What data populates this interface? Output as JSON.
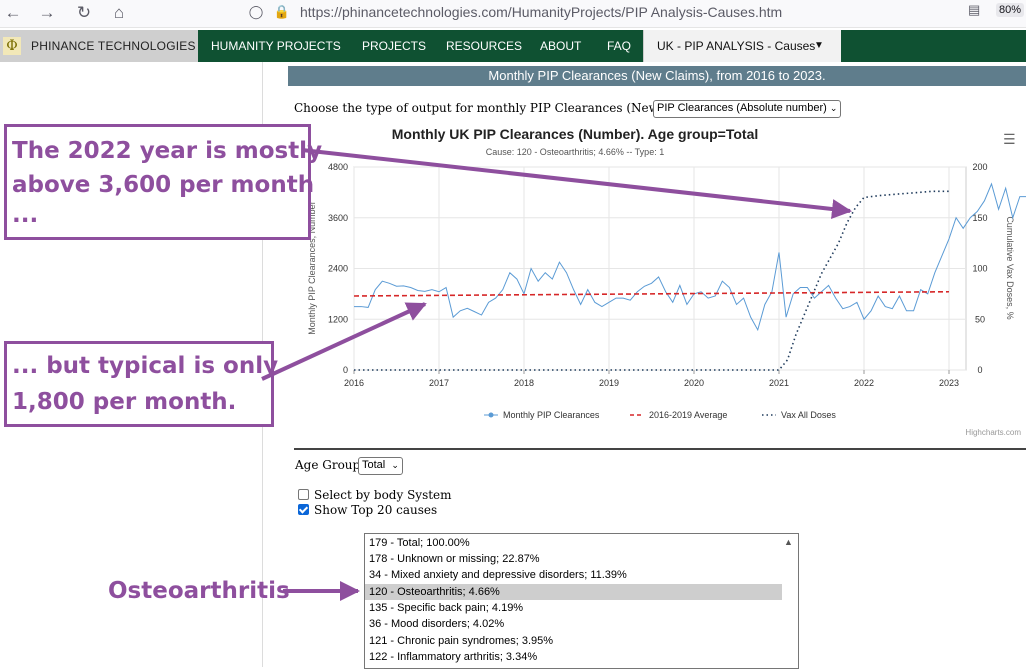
{
  "browser": {
    "url": "https://phinancetechnologies.com/HumanityProjects/PIP Analysis-Causes.htm",
    "zoom": "80%",
    "back_icon": "arrow-left-icon",
    "forward_icon": "arrow-right-icon",
    "reload_icon": "reload-icon",
    "home_icon": "home-icon"
  },
  "nav": {
    "brand": "PHINANCE TECHNOLOGIES",
    "items": [
      "HUMANITY PROJECTS",
      "PROJECTS",
      "RESOURCES",
      "ABOUT",
      "FAQ"
    ],
    "active": "UK - PIP ANALYSIS - Causes",
    "colors": {
      "bar": "#0f5132",
      "active_bg": "#f2f2f2"
    }
  },
  "banner": "Monthly PIP Clearances (New Claims), from 2016 to 2023.",
  "output_label": "Choose the type of output for monthly PIP Clearances (New Claims):",
  "output_select": "PIP Clearances (Absolute number)",
  "chart_data": {
    "type": "line",
    "title": "Monthly UK PIP Clearances (Number). Age group=Total",
    "subtitle": "Cause: 120 - Osteoarthritis; 4.66% -- Type: 1",
    "ylabel": "Monthly PIP Clearances, Number",
    "y2label": "Cumulative Vax Doses, %",
    "ylim": [
      0,
      4800
    ],
    "y2lim": [
      0,
      200
    ],
    "yticks": [
      "0",
      "1200",
      "2400",
      "3600",
      "4800"
    ],
    "y2ticks": [
      "0",
      "50",
      "100",
      "150",
      "200"
    ],
    "xlim": [
      2016,
      2023.2
    ],
    "xticks": [
      "2016",
      "2017",
      "2018",
      "2019",
      "2020",
      "2021",
      "2022",
      "2023"
    ],
    "grid": true,
    "legend_position": "bottom",
    "credits": "Highcharts.com",
    "series": [
      {
        "name": "Monthly PIP Clearances",
        "color": "#5b9bd5",
        "start": 2016,
        "step_months": 1,
        "values": [
          1500,
          1500,
          1480,
          1900,
          2100,
          2050,
          1980,
          1990,
          1950,
          1880,
          1860,
          1900,
          1850,
          1950,
          1250,
          1400,
          1460,
          1380,
          1300,
          1600,
          1700,
          1900,
          2300,
          2150,
          1800,
          2400,
          2100,
          2300,
          2150,
          2550,
          2300,
          1900,
          1550,
          1900,
          1600,
          1500,
          1600,
          1700,
          1700,
          1650,
          1850,
          1980,
          2050,
          2200,
          1850,
          1600,
          2000,
          1550,
          1800,
          1850,
          1700,
          1750,
          2100,
          1950,
          1550,
          1700,
          1250,
          950,
          1550,
          1850,
          2780,
          1250,
          1800,
          1950,
          1950,
          1700,
          1850,
          2000,
          1700,
          1450,
          1500,
          1600,
          1200,
          1400,
          1750,
          1500,
          1450,
          1750,
          1400,
          1400,
          1900,
          1800,
          2300,
          2700,
          3100,
          3600,
          3350,
          3600,
          3750,
          4000,
          4400,
          3800,
          4300,
          3600,
          4100,
          4100,
          3950,
          4500,
          4400,
          3900,
          4300,
          3500,
          4200
        ]
      },
      {
        "name": "2016-2019 Average",
        "color": "#d62728",
        "start": 2016,
        "end": 2023,
        "values": [
          1750,
          1850
        ]
      },
      {
        "name": "Vax All Doses",
        "color": "#1f3b5c",
        "axis": "right",
        "points": [
          [
            2016,
            0
          ],
          [
            2021.0,
            0
          ],
          [
            2021.1,
            10
          ],
          [
            2021.2,
            35
          ],
          [
            2021.3,
            55
          ],
          [
            2021.4,
            75
          ],
          [
            2021.5,
            95
          ],
          [
            2021.6,
            110
          ],
          [
            2021.7,
            125
          ],
          [
            2021.8,
            145
          ],
          [
            2021.9,
            160
          ],
          [
            2022.0,
            170
          ],
          [
            2022.2,
            172
          ],
          [
            2022.5,
            174
          ],
          [
            2022.8,
            176
          ],
          [
            2023.0,
            176
          ]
        ]
      }
    ]
  },
  "age_group": {
    "label": "Age Group:",
    "value": "Total"
  },
  "checkboxes": [
    {
      "label": "Select by body System",
      "checked": false
    },
    {
      "label": "Show Top 20 causes",
      "checked": true
    }
  ],
  "causes": [
    "179 - Total; 100.00%",
    "178 - Unknown or missing; 22.87%",
    "34 - Mixed anxiety and depressive disorders; 11.39%",
    "120 - Osteoarthritis; 4.66%",
    "135 - Specific back pain; 4.19%",
    "36 - Mood disorders; 4.02%",
    "121 - Chronic pain syndromes; 3.95%",
    "122 - Inflammatory arthritis; 3.34%"
  ],
  "selected_cause": 3,
  "annotations": {
    "box1": [
      "The 2022 year is mostly",
      "above 3,600 per month",
      "..."
    ],
    "box2": [
      "... but typical is only",
      "1,800 per month."
    ],
    "label3": "Osteoarthritis",
    "color": "#8e4f9e"
  }
}
